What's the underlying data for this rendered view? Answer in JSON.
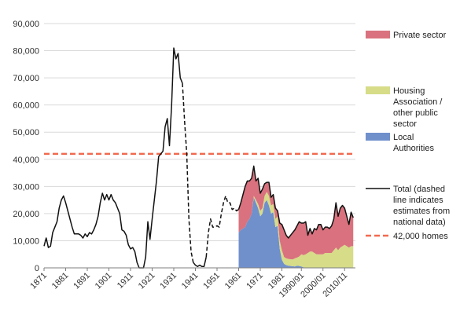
{
  "chart_data": {
    "type": "area",
    "title": "",
    "xlabel": "",
    "ylabel": "",
    "ylim": [
      0,
      90000
    ],
    "yticks": [
      0,
      10000,
      20000,
      30000,
      40000,
      50000,
      60000,
      70000,
      80000,
      90000
    ],
    "ytick_labels": [
      "0",
      "10,000",
      "20,000",
      "30,000",
      "40,000",
      "50,000",
      "60,000",
      "70,000",
      "80,000",
      "90,000"
    ],
    "xlim": [
      1871,
      2015
    ],
    "xtick_labels": [
      "1871",
      "1881",
      "1891",
      "1901",
      "1911",
      "1921",
      "1931",
      "1941",
      "1951",
      "1961",
      "1971",
      "1981",
      "1990/91",
      "2000/01",
      "2010/11"
    ],
    "xticks": [
      1871,
      1881,
      1891,
      1901,
      1911,
      1921,
      1931,
      1941,
      1951,
      1961,
      1971,
      1981,
      1990,
      2000,
      2010
    ],
    "grid": "horizontal",
    "legend_position": "right",
    "legend": [
      {
        "label": "Private sector",
        "kind": "area",
        "color": "#d9727e"
      },
      {
        "label": "Housing Association / other public sector",
        "kind": "area",
        "color": "#d6dc88"
      },
      {
        "label": "Local Authorities",
        "kind": "area",
        "color": "#7090cc"
      },
      {
        "label": "Total (dashed line indicates estimates from national data)",
        "kind": "line",
        "color": "#111111"
      },
      {
        "label": "42,000 homes",
        "kind": "dashed",
        "color": "#f26a4f"
      }
    ],
    "reference_line": {
      "value": 42000,
      "label": "42,000 homes"
    },
    "series": [
      {
        "name": "Total (dashed line indicates estimates from national data)",
        "segments": [
          {
            "style": "solid",
            "points": [
              [
                1871,
                8000
              ],
              [
                1872,
                11000
              ],
              [
                1873,
                7500
              ],
              [
                1874,
                8000
              ],
              [
                1875,
                13000
              ],
              [
                1876,
                15000
              ],
              [
                1877,
                17000
              ],
              [
                1878,
                22000
              ],
              [
                1879,
                25000
              ],
              [
                1880,
                26500
              ],
              [
                1881,
                24000
              ],
              [
                1882,
                21000
              ],
              [
                1883,
                18000
              ],
              [
                1884,
                15000
              ],
              [
                1885,
                12500
              ],
              [
                1886,
                12500
              ],
              [
                1887,
                12500
              ],
              [
                1888,
                12000
              ],
              [
                1889,
                11000
              ],
              [
                1890,
                12500
              ],
              [
                1891,
                11500
              ],
              [
                1892,
                13000
              ],
              [
                1893,
                12500
              ],
              [
                1894,
                14000
              ],
              [
                1895,
                16000
              ],
              [
                1896,
                19000
              ],
              [
                1897,
                24000
              ],
              [
                1898,
                27500
              ],
              [
                1899,
                25000
              ],
              [
                1900,
                27000
              ],
              [
                1901,
                25000
              ],
              [
                1902,
                27000
              ],
              [
                1903,
                25000
              ],
              [
                1904,
                24000
              ],
              [
                1905,
                22000
              ],
              [
                1906,
                20000
              ],
              [
                1907,
                14000
              ],
              [
                1908,
                13500
              ],
              [
                1909,
                12000
              ],
              [
                1910,
                8500
              ],
              [
                1911,
                7000
              ],
              [
                1912,
                7500
              ],
              [
                1913,
                6000
              ],
              [
                1914,
                2000
              ],
              [
                1915,
                0
              ],
              [
                1916,
                0
              ],
              [
                1917,
                0
              ],
              [
                1918,
                4000
              ],
              [
                1919,
                17000
              ],
              [
                1920,
                10500
              ],
              [
                1921,
                18000
              ],
              [
                1922,
                25000
              ],
              [
                1923,
                32000
              ],
              [
                1924,
                41000
              ],
              [
                1925,
                42000
              ],
              [
                1926,
                43000
              ],
              [
                1927,
                52000
              ],
              [
                1928,
                55000
              ],
              [
                1929,
                45000
              ],
              [
                1930,
                60000
              ],
              [
                1931,
                81000
              ],
              [
                1932,
                77000
              ],
              [
                1933,
                79000
              ],
              [
                1934,
                70000
              ],
              [
                1935,
                68000
              ]
            ]
          },
          {
            "style": "dashed",
            "points": [
              [
                1935,
                68000
              ],
              [
                1936,
                54000
              ],
              [
                1937,
                42000
              ],
              [
                1938,
                18000
              ],
              [
                1939,
                6000
              ],
              [
                1940,
                2000
              ]
            ]
          },
          {
            "style": "solid",
            "points": [
              [
                1940,
                2000
              ],
              [
                1941,
                1000
              ],
              [
                1942,
                500
              ],
              [
                1943,
                1000
              ],
              [
                1944,
                500
              ],
              [
                1945,
                500
              ],
              [
                1946,
                4000
              ]
            ]
          },
          {
            "style": "dashed",
            "points": [
              [
                1946,
                4000
              ],
              [
                1947,
                13000
              ],
              [
                1948,
                18000
              ],
              [
                1949,
                15000
              ],
              [
                1950,
                15000
              ],
              [
                1951,
                15500
              ],
              [
                1952,
                15000
              ],
              [
                1953,
                20000
              ],
              [
                1954,
                24000
              ],
              [
                1955,
                26500
              ],
              [
                1956,
                24000
              ],
              [
                1957,
                24000
              ],
              [
                1958,
                21500
              ],
              [
                1959,
                22000
              ],
              [
                1960,
                21000
              ],
              [
                1961,
                21500
              ]
            ]
          },
          {
            "style": "solid",
            "points": [
              [
                1961,
                21500
              ],
              [
                1962,
                24000
              ],
              [
                1963,
                27000
              ],
              [
                1964,
                30000
              ],
              [
                1965,
                32000
              ],
              [
                1966,
                32000
              ],
              [
                1967,
                33000
              ],
              [
                1968,
                37500
              ],
              [
                1969,
                32000
              ],
              [
                1970,
                33000
              ],
              [
                1971,
                27500
              ],
              [
                1972,
                29000
              ],
              [
                1973,
                31000
              ],
              [
                1974,
                31500
              ],
              [
                1975,
                31500
              ],
              [
                1976,
                26000
              ],
              [
                1977,
                27000
              ],
              [
                1978,
                22000
              ],
              [
                1979,
                21000
              ],
              [
                1980,
                16500
              ],
              [
                1981,
                16000
              ],
              [
                1982,
                14000
              ],
              [
                1983,
                12000
              ],
              [
                1984,
                11000
              ],
              [
                1985,
                12000
              ],
              [
                1986,
                13000
              ],
              [
                1987,
                14000
              ],
              [
                1988,
                15500
              ],
              [
                1989,
                17000
              ],
              [
                1990,
                16500
              ],
              [
                1991,
                16500
              ],
              [
                1992,
                17000
              ],
              [
                1993,
                12000
              ],
              [
                1994,
                14500
              ],
              [
                1995,
                12500
              ],
              [
                1996,
                14500
              ],
              [
                1997,
                14000
              ],
              [
                1998,
                16000
              ],
              [
                1999,
                16000
              ],
              [
                2000,
                14000
              ],
              [
                2001,
                15000
              ],
              [
                2002,
                15000
              ],
              [
                2003,
                14500
              ],
              [
                2004,
                15500
              ],
              [
                2005,
                18000
              ],
              [
                2006,
                24000
              ],
              [
                2007,
                19000
              ],
              [
                2008,
                22000
              ],
              [
                2009,
                23000
              ],
              [
                2010,
                22000
              ],
              [
                2011,
                19000
              ],
              [
                2012,
                16000
              ],
              [
                2013,
                20500
              ],
              [
                2014,
                18500
              ]
            ]
          }
        ]
      },
      {
        "name": "Local Authorities",
        "x": [
          1961,
          1962,
          1963,
          1964,
          1965,
          1966,
          1967,
          1968,
          1969,
          1970,
          1971,
          1972,
          1973,
          1974,
          1975,
          1976,
          1977,
          1978,
          1979,
          1980,
          1981,
          1982,
          1983,
          1984,
          1985,
          1986,
          1987,
          1988,
          1989,
          1990,
          1991,
          1992
        ],
        "values": [
          13000,
          14000,
          14500,
          15000,
          17000,
          18000,
          20000,
          26000,
          24000,
          22000,
          19000,
          20000,
          24000,
          25000,
          23000,
          20000,
          20500,
          15000,
          15500,
          7000,
          3000,
          1500,
          1000,
          800,
          700,
          600,
          500,
          800,
          700,
          500,
          200,
          0
        ]
      },
      {
        "name": "Housing Association / other public sector",
        "x": [
          1961,
          1962,
          1963,
          1964,
          1965,
          1966,
          1967,
          1968,
          1969,
          1970,
          1971,
          1972,
          1973,
          1974,
          1975,
          1976,
          1977,
          1978,
          1979,
          1980,
          1981,
          1982,
          1983,
          1984,
          1985,
          1986,
          1987,
          1988,
          1989,
          1990,
          1991,
          1992,
          1993,
          1994,
          1995,
          1996,
          1997,
          1998,
          1999,
          2000,
          2001,
          2002,
          2003,
          2004,
          2005,
          2006,
          2007,
          2008,
          2009,
          2010,
          2011,
          2012,
          2013,
          2014
        ],
        "values": [
          0,
          0,
          0,
          0,
          0,
          0,
          0,
          500,
          1000,
          1500,
          2000,
          2000,
          2500,
          3000,
          3500,
          3000,
          3000,
          3000,
          3500,
          3000,
          3500,
          2500,
          2500,
          2500,
          2500,
          2500,
          3000,
          3000,
          3500,
          4500,
          4500,
          5000,
          5500,
          6000,
          6000,
          5500,
          5000,
          5000,
          5000,
          5000,
          5500,
          5500,
          5500,
          5500,
          6500,
          7500,
          6500,
          7500,
          8000,
          8500,
          8000,
          7500,
          8000,
          8000
        ]
      },
      {
        "name": "Private sector",
        "x": [
          1961,
          1962,
          1963,
          1964,
          1965,
          1966,
          1967,
          1968,
          1969,
          1970,
          1971,
          1972,
          1973,
          1974,
          1975,
          1976,
          1977,
          1978,
          1979,
          1980,
          1981,
          1982,
          1983,
          1984,
          1985,
          1986,
          1987,
          1988,
          1989,
          1990,
          1991,
          1992,
          1993,
          1994,
          1995,
          1996,
          1997,
          1998,
          1999,
          2000,
          2001,
          2002,
          2003,
          2004,
          2005,
          2006,
          2007,
          2008,
          2009,
          2010,
          2011,
          2012,
          2013,
          2014
        ],
        "values": [
          8500,
          10000,
          12500,
          15000,
          15000,
          14000,
          13000,
          11000,
          7000,
          9500,
          6500,
          7000,
          4500,
          3500,
          5000,
          3000,
          3500,
          4000,
          2000,
          6500,
          9500,
          10000,
          8500,
          7700,
          8800,
          9900,
          10500,
          11700,
          12800,
          11500,
          11800,
          12000,
          6500,
          8500,
          6500,
          9000,
          9000,
          11000,
          11000,
          9000,
          9500,
          9500,
          9000,
          10000,
          11500,
          16500,
          12500,
          14500,
          15000,
          13500,
          11000,
          8500,
          12500,
          10500
        ]
      }
    ]
  }
}
